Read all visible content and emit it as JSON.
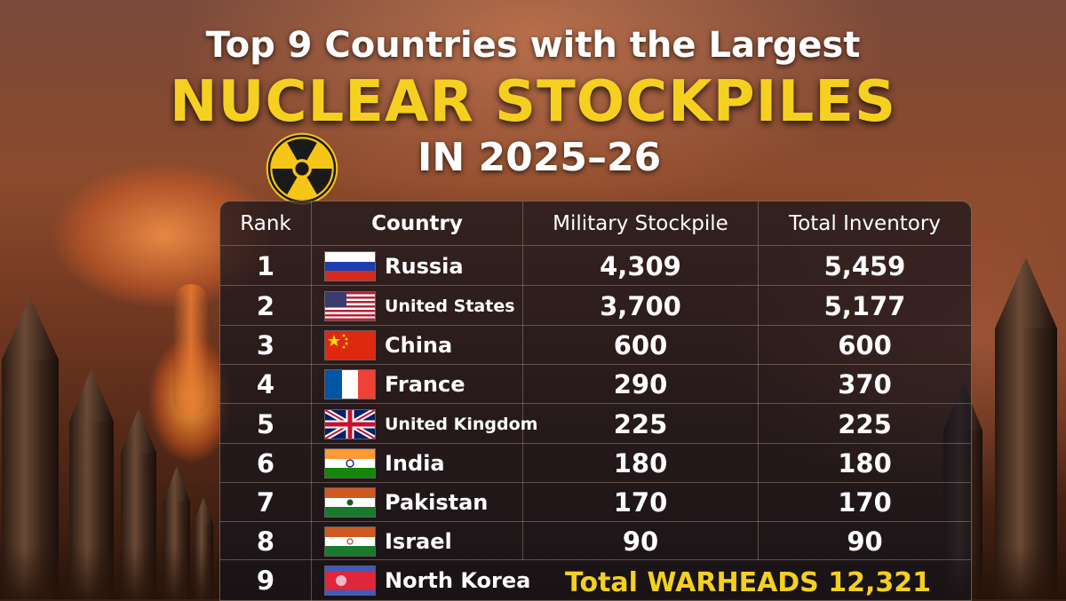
{
  "header": {
    "line1": "Top 9 Countries with the Largest",
    "line2": "NUCLEAR STOCKPILES",
    "line3": "IN 2025–26"
  },
  "table": {
    "columns": {
      "rank": "Rank",
      "country": "Country",
      "military": "Military Stockpile",
      "total": "Total Inventory"
    },
    "rows": [
      {
        "rank": "1",
        "country": "Russia",
        "flag": "russia-flag",
        "military": "4,309",
        "total": "5,459"
      },
      {
        "rank": "2",
        "country": "United States",
        "flag": "usa-flag",
        "military": "3,700",
        "total": "5,177"
      },
      {
        "rank": "3",
        "country": "China",
        "flag": "china-flag",
        "military": "600",
        "total": "600"
      },
      {
        "rank": "4",
        "country": "France",
        "flag": "france-flag",
        "military": "290",
        "total": "370"
      },
      {
        "rank": "5",
        "country": "United Kingdom",
        "flag": "uk-flag",
        "military": "225",
        "total": "225"
      },
      {
        "rank": "6",
        "country": "India",
        "flag": "india-flag",
        "military": "180",
        "total": "180"
      },
      {
        "rank": "7",
        "country": "Pakistan",
        "flag": "pakistan-flag",
        "military": "170",
        "total": "170"
      },
      {
        "rank": "8",
        "country": "Israel",
        "flag": "israel-flag",
        "military": "90",
        "total": "90"
      },
      {
        "rank": "9",
        "country": "North Korea",
        "flag": "north-korea-flag"
      }
    ],
    "total_text": "Total WARHEADS 12,321"
  },
  "colors": {
    "accent": "#f5d020",
    "text": "#ffffff",
    "table_bg": "#14141c"
  },
  "icons": [
    "radiation-icon"
  ]
}
